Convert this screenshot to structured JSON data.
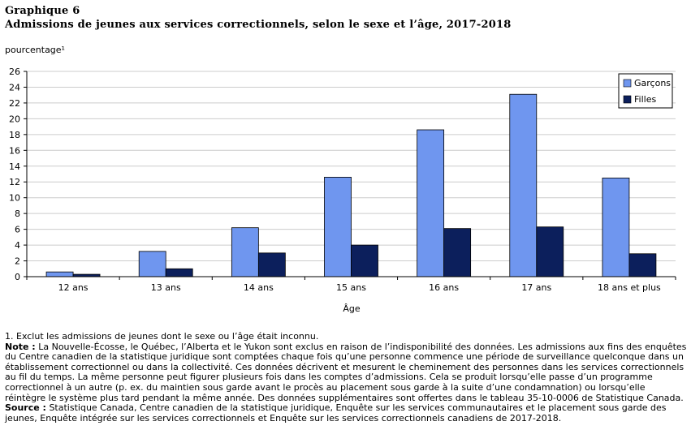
{
  "header": {
    "chart_number": "Graphique 6",
    "title": "Admissions de jeunes aux services correctionnels, selon le sexe et l’âge, 2017-2018"
  },
  "colors": {
    "garcons": "#6f96ef",
    "filles": "#0c1f5c",
    "grid": "#cccccc",
    "axis": "#000000"
  },
  "chart_data": {
    "type": "bar",
    "title": "Admissions de jeunes aux services correctionnels, selon le sexe et l’âge, 2017-2018",
    "ylabel": "pourcentage¹",
    "xlabel": "Âge",
    "categories": [
      "12 ans",
      "13 ans",
      "14 ans",
      "15 ans",
      "16 ans",
      "17 ans",
      "18 ans et plus"
    ],
    "series": [
      {
        "name": "Garçons",
        "values": [
          0.6,
          3.2,
          6.2,
          12.6,
          18.6,
          23.1,
          12.5
        ]
      },
      {
        "name": "Filles",
        "values": [
          0.3,
          1.0,
          3.0,
          4.0,
          6.1,
          6.3,
          2.9
        ]
      }
    ],
    "ylim": [
      0,
      26
    ],
    "yticks": [
      0,
      2,
      4,
      6,
      8,
      10,
      12,
      14,
      16,
      18,
      20,
      22,
      24,
      26
    ],
    "grid": true,
    "legend_position": "top-right"
  },
  "notes": {
    "footnote": "1. Exclut les admissions de jeunes dont le sexe ou l’âge était inconnu.",
    "note_label": "Note :",
    "note_text": "La Nouvelle-Écosse, le Québec, l’Alberta et le Yukon sont exclus en raison de l’indisponibilité des données. Les admissions aux fins des enquêtes du Centre canadien de la statistique juridique sont comptées chaque fois qu’une personne commence une période de surveillance quelconque dans un établissement correctionnel ou dans la collectivité. Ces données décrivent et mesurent le cheminement des personnes dans les services correctionnels au fil du temps. La même personne peut figurer plusieurs fois dans les comptes d’admissions. Cela se produit lorsqu’elle passe d’un programme correctionnel à un autre (p. ex. du maintien sous garde avant le procès au placement sous garde à la suite d’une condamnation) ou lorsqu’elle réintègre le système plus tard pendant la même année. Des données supplémentaires sont offertes dans le tableau 35-10-0006 de Statistique Canada.",
    "source_label": "Source :",
    "source_text": "Statistique Canada, Centre canadien de la statistique juridique, Enquête sur les services communautaires et le placement sous garde des jeunes, Enquête intégrée sur les services correctionnels et Enquête sur les services correctionnels canadiens de 2017-2018."
  }
}
